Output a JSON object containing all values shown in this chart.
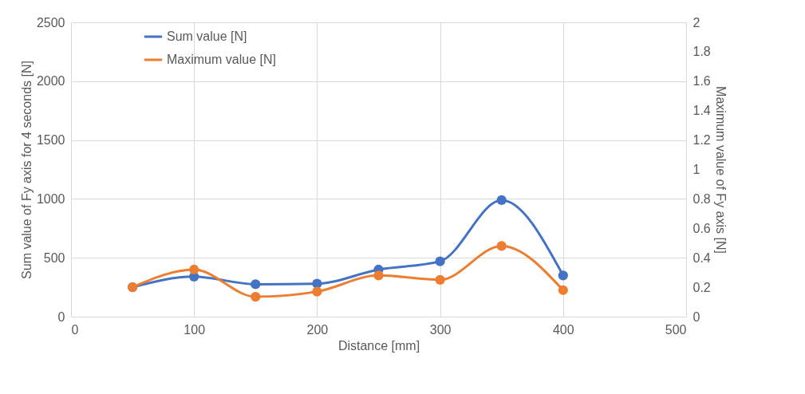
{
  "chart_data": {
    "type": "line",
    "xlabel": "Distance [mm]",
    "ylabel": "Sum value of Fy axis for 4 seconds [N]",
    "y2label": "Maximum value of Fy axis [N]",
    "x": [
      50,
      100,
      150,
      200,
      250,
      300,
      350,
      400
    ],
    "xlim": [
      0,
      500
    ],
    "xticks": [
      0,
      100,
      200,
      300,
      400,
      500
    ],
    "ylim": [
      0,
      2500
    ],
    "yticks": [
      0,
      500,
      1000,
      1500,
      2000,
      2500
    ],
    "y2lim": [
      0,
      2
    ],
    "y2ticks": [
      0,
      0.2,
      0.4,
      0.6,
      0.8,
      1,
      1.2,
      1.4,
      1.6,
      1.8,
      2
    ],
    "series": [
      {
        "name": "Sum value [N]",
        "color": "#4472c4",
        "values": [
          250,
          340,
          275,
          280,
          400,
          470,
          990,
          350
        ]
      },
      {
        "name": "Maximum value [N]",
        "color": "#ed7d31",
        "axis": "y2",
        "values": [
          0.2,
          0.32,
          0.135,
          0.17,
          0.28,
          0.25,
          0.48,
          0.18
        ]
      }
    ],
    "grid": true,
    "legend": "top left",
    "marker": "circle",
    "line_style": "solid"
  }
}
